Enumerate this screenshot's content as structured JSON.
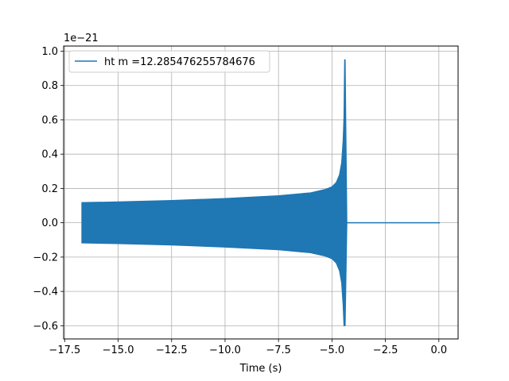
{
  "chart_data": {
    "type": "line",
    "title": "",
    "xlabel": "Time (s)",
    "ylabel": "",
    "y_offset_label": "1e−21",
    "xlim": [
      -17.55,
      0.9
    ],
    "ylim": [
      -0.677,
      1.03
    ],
    "grid": true,
    "legend_placement": "top-left",
    "x_ticks": [
      {
        "value": -17.5,
        "label": "−17.5"
      },
      {
        "value": -15.0,
        "label": "−15.0"
      },
      {
        "value": -12.5,
        "label": "−12.5"
      },
      {
        "value": -10.0,
        "label": "−10.0"
      },
      {
        "value": -7.5,
        "label": "−7.5"
      },
      {
        "value": -5.0,
        "label": "−5.0"
      },
      {
        "value": -2.5,
        "label": "−2.5"
      },
      {
        "value": 0.0,
        "label": "0.0"
      }
    ],
    "y_ticks": [
      {
        "value": -0.6,
        "label": "−0.6"
      },
      {
        "value": -0.4,
        "label": "−0.4"
      },
      {
        "value": -0.2,
        "label": "−0.2"
      },
      {
        "value": 0.0,
        "label": "0.0"
      },
      {
        "value": 0.2,
        "label": "0.2"
      },
      {
        "value": 0.4,
        "label": "0.4"
      },
      {
        "value": 0.6,
        "label": "0.6"
      },
      {
        "value": 0.8,
        "label": "0.8"
      },
      {
        "value": 1.0,
        "label": "1.0"
      }
    ],
    "series": [
      {
        "name": "ht m =12.285476255784676",
        "color": "#1f77b4",
        "envelope": {
          "x": [
            -16.7,
            -15.0,
            -12.5,
            -10.0,
            -7.5,
            -6.0,
            -5.3,
            -5.0,
            -4.8,
            -4.65,
            -4.55,
            -4.48,
            -4.44
          ],
          "upper": [
            0.118,
            0.122,
            0.13,
            0.142,
            0.158,
            0.175,
            0.195,
            0.21,
            0.235,
            0.28,
            0.35,
            0.48,
            0.62
          ],
          "lower": [
            -0.118,
            -0.122,
            -0.13,
            -0.142,
            -0.158,
            -0.175,
            -0.195,
            -0.21,
            -0.235,
            -0.28,
            -0.35,
            -0.48,
            -0.6
          ]
        },
        "merger_peak": {
          "x": -4.4,
          "max": 0.95,
          "min": -0.6
        },
        "ringdown_end_x": -4.3,
        "tail": {
          "x": [
            -4.3,
            0.05
          ],
          "y": [
            0.0,
            0.0
          ]
        }
      }
    ]
  }
}
